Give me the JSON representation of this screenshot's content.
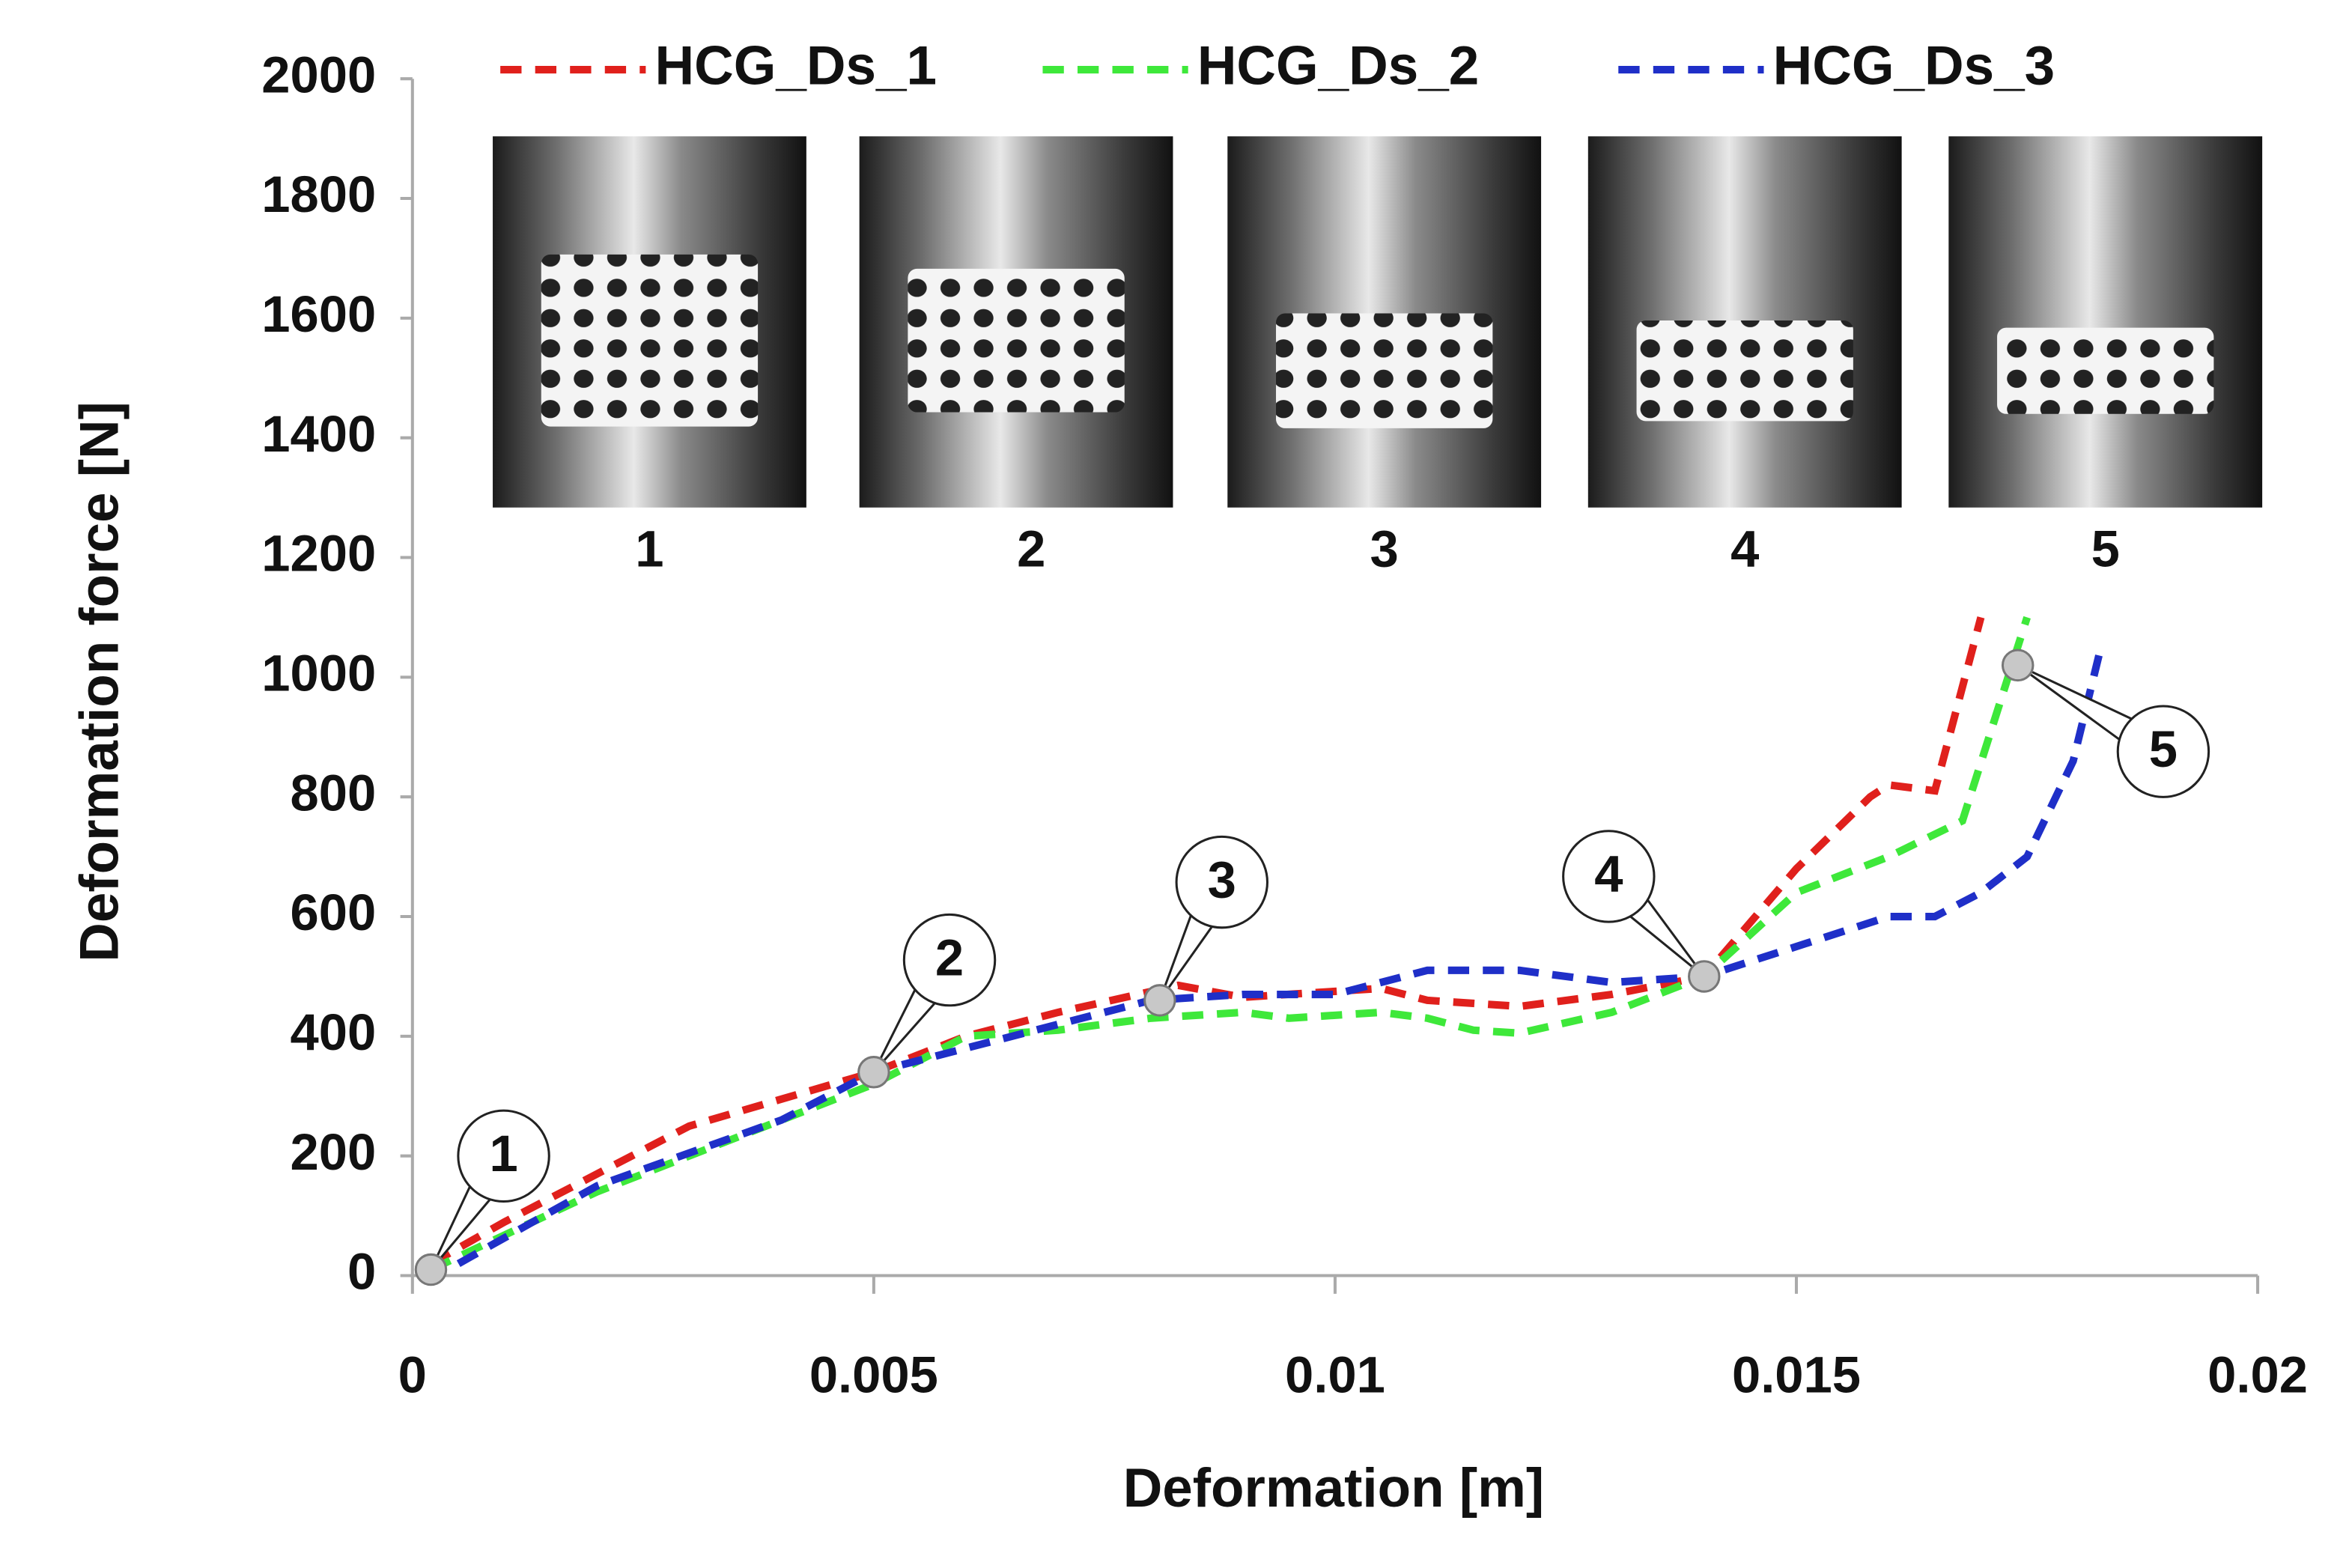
{
  "chart_data": {
    "type": "line",
    "x_label": "Deformation [m]",
    "y_label": "Deformation force [N]",
    "xlim": [
      0,
      0.02
    ],
    "xticks": [
      0,
      0.005,
      0.01,
      0.015,
      0.02
    ],
    "ylim": [
      0,
      2000
    ],
    "yticks": [
      0,
      200,
      400,
      600,
      800,
      1000,
      1200,
      1400,
      1600,
      1800,
      2000
    ],
    "grid": false,
    "legend": "top",
    "series": [
      {
        "name": "HCG_Ds_1",
        "color": "#e0201c",
        "x": [
          0.0002,
          0.001,
          0.003,
          0.005,
          0.006,
          0.007,
          0.0083,
          0.009,
          0.0105,
          0.011,
          0.0115,
          0.012,
          0.013,
          0.014,
          0.015,
          0.0158,
          0.016,
          0.0165,
          0.017
        ],
        "values": [
          20,
          90,
          250,
          340,
          400,
          440,
          485,
          465,
          480,
          460,
          455,
          450,
          470,
          500,
          680,
          800,
          820,
          810,
          1100
        ]
      },
      {
        "name": "HCG_Ds_2",
        "color": "#3ee83a",
        "x": [
          0.0002,
          0.002,
          0.004,
          0.005,
          0.006,
          0.007,
          0.008,
          0.009,
          0.0095,
          0.0105,
          0.011,
          0.0115,
          0.012,
          0.013,
          0.014,
          0.015,
          0.016,
          0.0168,
          0.0175
        ],
        "values": [
          10,
          140,
          260,
          320,
          400,
          410,
          430,
          440,
          430,
          440,
          430,
          410,
          405,
          440,
          500,
          640,
          700,
          760,
          1100
        ]
      },
      {
        "name": "HCG_Ds_3",
        "color": "#1f2fc8",
        "x": [
          0.0005,
          0.002,
          0.004,
          0.005,
          0.006,
          0.007,
          0.008,
          0.009,
          0.01,
          0.011,
          0.012,
          0.013,
          0.014,
          0.015,
          0.016,
          0.0165,
          0.017,
          0.0175,
          0.018,
          0.0183
        ],
        "values": [
          20,
          150,
          260,
          340,
          380,
          420,
          460,
          470,
          470,
          510,
          510,
          490,
          500,
          550,
          600,
          600,
          640,
          700,
          860,
          1050
        ]
      }
    ],
    "annotations": [
      {
        "label": "1",
        "x": 0.0002,
        "y": 10
      },
      {
        "label": "2",
        "x": 0.005,
        "y": 340
      },
      {
        "label": "3",
        "x": 0.0081,
        "y": 460
      },
      {
        "label": "4",
        "x": 0.014,
        "y": 500
      },
      {
        "label": "5",
        "x": 0.0174,
        "y": 1020
      }
    ],
    "image_captions": [
      "1",
      "2",
      "3",
      "4",
      "5"
    ]
  }
}
